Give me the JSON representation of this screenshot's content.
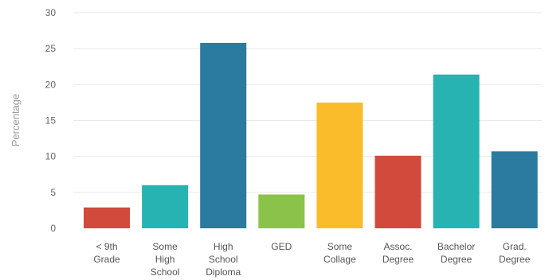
{
  "chart_data": {
    "type": "bar",
    "title": "",
    "xlabel": "",
    "ylabel": "Percentage",
    "ylim": [
      0,
      30
    ],
    "yticks": [
      0,
      5,
      10,
      15,
      20,
      25,
      30
    ],
    "grid": true,
    "categories": [
      [
        "< 9th",
        "Grade"
      ],
      [
        "Some",
        "High",
        "School"
      ],
      [
        "High",
        "School",
        "Diploma"
      ],
      [
        "GED"
      ],
      [
        "Some",
        "Collage"
      ],
      [
        "Assoc.",
        "Degree"
      ],
      [
        "Bachelor",
        "Degree"
      ],
      [
        "Grad.",
        "Degree"
      ]
    ],
    "values": [
      2.9,
      6.0,
      25.8,
      4.7,
      17.5,
      10.1,
      21.4,
      10.7
    ],
    "colors": [
      "#d24a3b",
      "#27b3b1",
      "#2b7ba0",
      "#8bc34a",
      "#fbbc2b",
      "#d24a3b",
      "#27b3b1",
      "#2b7ba0"
    ]
  }
}
